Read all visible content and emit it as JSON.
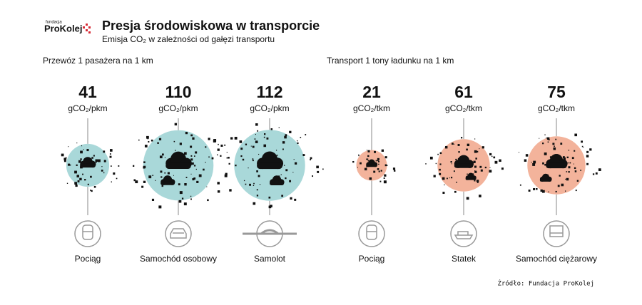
{
  "logo": {
    "small": "fundacja",
    "name": "ProKolej"
  },
  "title": "Presja środowiskowa w transporcie",
  "subtitle": "Emisja CO₂ w zależności od gałęzi transportu",
  "source": "Źródło: Fundacja ProKolej",
  "chart_data": [
    {
      "type": "bubble",
      "title": "Przewóz 1 pasażera na 1 km",
      "unit": "gCO₂/pkm",
      "color": "#a9d8d9",
      "categories": [
        "Pociąg",
        "Samochód osobowy",
        "Samolot"
      ],
      "values": [
        41,
        110,
        112
      ]
    },
    {
      "type": "bubble",
      "title": "Transport 1 tony ładunku na 1 km",
      "unit": "gCO₂/tkm",
      "color": "#f3b39b",
      "categories": [
        "Pociąg",
        "Statek",
        "Samochód ciężarowy"
      ],
      "values": [
        21,
        61,
        75
      ]
    }
  ]
}
